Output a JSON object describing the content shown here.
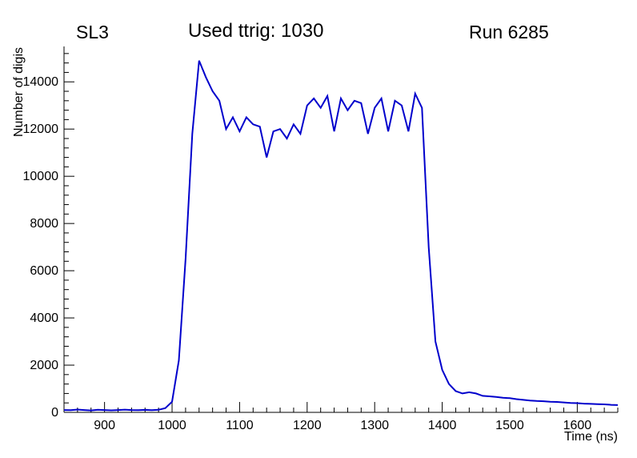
{
  "chart_data": {
    "type": "line",
    "title": "Used ttrig: 1030",
    "corner_left": "SL3",
    "corner_right": "Run 6285",
    "xlabel": "Time (ns)",
    "ylabel": "Number of digis",
    "xlim": [
      840,
      1660
    ],
    "ylim": [
      0,
      15500
    ],
    "x_major_ticks": [
      900,
      1000,
      1100,
      1200,
      1300,
      1400,
      1500,
      1600
    ],
    "x_minor_step": 20,
    "y_major_ticks": [
      0,
      2000,
      4000,
      6000,
      8000,
      10000,
      12000,
      14000
    ],
    "y_minor_step": 400,
    "grid": false,
    "legend": "none",
    "line_color": "#0000cc",
    "line_width": 2,
    "axis_color": "#000000",
    "series": [
      {
        "name": "digis",
        "x": [
          840,
          850,
          860,
          870,
          880,
          890,
          900,
          910,
          920,
          930,
          940,
          950,
          960,
          970,
          980,
          990,
          1000,
          1010,
          1020,
          1030,
          1040,
          1050,
          1060,
          1070,
          1080,
          1090,
          1100,
          1110,
          1120,
          1130,
          1140,
          1150,
          1160,
          1170,
          1180,
          1190,
          1200,
          1210,
          1220,
          1230,
          1240,
          1250,
          1260,
          1270,
          1280,
          1290,
          1300,
          1310,
          1320,
          1330,
          1340,
          1350,
          1360,
          1370,
          1380,
          1390,
          1400,
          1410,
          1420,
          1430,
          1440,
          1450,
          1460,
          1470,
          1480,
          1490,
          1500,
          1510,
          1520,
          1530,
          1540,
          1550,
          1560,
          1570,
          1580,
          1590,
          1600,
          1610,
          1620,
          1630,
          1640,
          1650,
          1660
        ],
        "y": [
          100,
          90,
          120,
          100,
          80,
          110,
          100,
          85,
          100,
          115,
          100,
          90,
          105,
          95,
          110,
          180,
          450,
          2200,
          6500,
          11800,
          14900,
          14200,
          13600,
          13200,
          12000,
          12500,
          11900,
          12500,
          12200,
          12100,
          10800,
          11900,
          12000,
          11600,
          12200,
          11800,
          13000,
          13300,
          12900,
          13400,
          11900,
          13300,
          12800,
          13200,
          13100,
          11800,
          12900,
          13300,
          11900,
          13200,
          13000,
          11900,
          13500,
          12900,
          7000,
          3000,
          1800,
          1200,
          900,
          800,
          850,
          800,
          700,
          680,
          650,
          620,
          600,
          560,
          530,
          500,
          480,
          470,
          450,
          440,
          420,
          400,
          390,
          370,
          360,
          350,
          340,
          320,
          310
        ]
      }
    ]
  }
}
